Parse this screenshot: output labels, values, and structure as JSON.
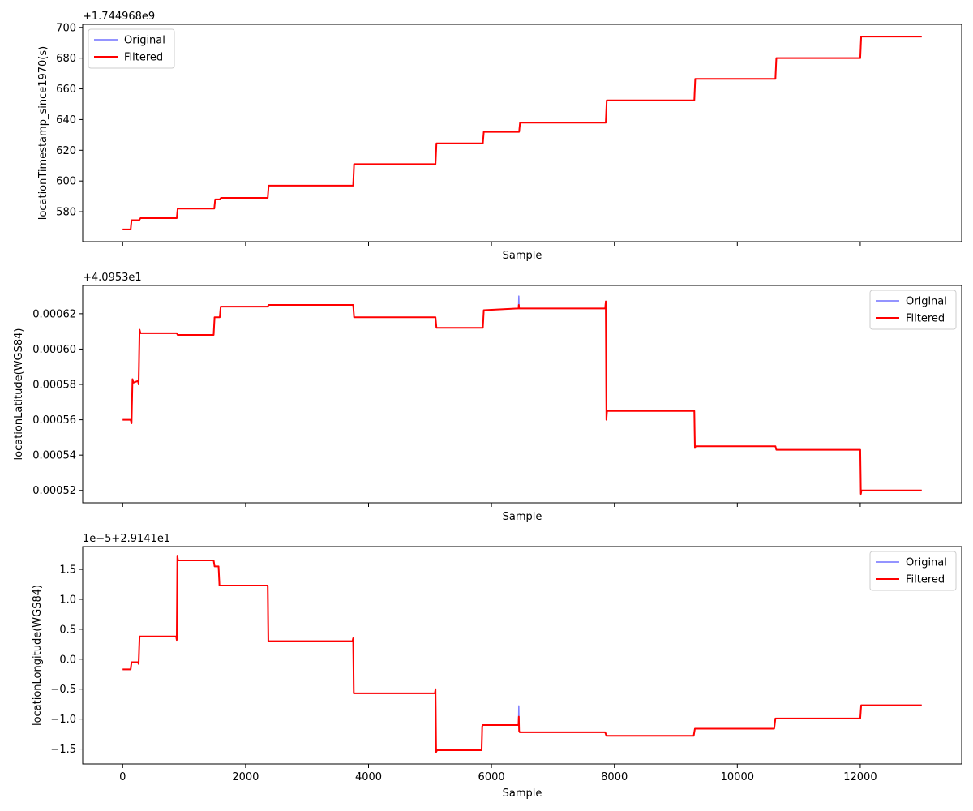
{
  "chart_data": [
    {
      "type": "line",
      "xlabel": "Sample",
      "ylabel": "locationTimestamp_since1970(s)",
      "offset_text": "+1.744968e9",
      "xlim": [
        -650,
        13650
      ],
      "ylim": [
        560.5,
        702.0
      ],
      "x_ticks": [
        0,
        2000,
        4000,
        6000,
        8000,
        10000,
        12000
      ],
      "x_tick_labels": [],
      "y_ticks": [
        580,
        600,
        620,
        640,
        660,
        680,
        700
      ],
      "y_tick_labels": [
        "580",
        "600",
        "620",
        "640",
        "660",
        "680",
        "700"
      ],
      "legend_position": "upper-left",
      "series": [
        {
          "name": "Original",
          "color": "#7070ff",
          "x": [
            0,
            130,
            145,
            270,
            290,
            880,
            895,
            1490,
            1505,
            1580,
            1600,
            2360,
            2375,
            3750,
            3765,
            5090,
            5105,
            5860,
            5875,
            6450,
            6465,
            7860,
            7875,
            9300,
            9315,
            10620,
            10635,
            12000,
            12015,
            13000
          ],
          "y": [
            568.5,
            568.5,
            574.5,
            574.5,
            575.8,
            575.8,
            582,
            582,
            588,
            588,
            589,
            589,
            597,
            597,
            611,
            611,
            624.5,
            624.5,
            632,
            632,
            638,
            638,
            652.5,
            652.5,
            666.5,
            666.5,
            680,
            680,
            694,
            694
          ]
        },
        {
          "name": "Filtered",
          "color": "#ff0000",
          "x": [
            0,
            130,
            145,
            270,
            290,
            880,
            895,
            1490,
            1505,
            1580,
            1600,
            2360,
            2375,
            3750,
            3765,
            5090,
            5105,
            5860,
            5875,
            6450,
            6465,
            7860,
            7875,
            9300,
            9315,
            10620,
            10635,
            12000,
            12015,
            13000
          ],
          "y": [
            568.5,
            568.5,
            574.5,
            574.5,
            575.8,
            575.8,
            582,
            582,
            588,
            588,
            589,
            589,
            597,
            597,
            611,
            611,
            624.5,
            624.5,
            632,
            632,
            638,
            638,
            652.5,
            652.5,
            666.5,
            666.5,
            680,
            680,
            694,
            694
          ]
        }
      ]
    },
    {
      "type": "line",
      "xlabel": "Sample",
      "ylabel": "locationLatitude(WGS84)",
      "offset_text": "+4.0953e1",
      "xlim": [
        -650,
        13650
      ],
      "ylim": [
        0.000513,
        0.000636
      ],
      "x_ticks": [
        0,
        2000,
        4000,
        6000,
        8000,
        10000,
        12000
      ],
      "x_tick_labels": [],
      "y_ticks": [
        0.00052,
        0.00054,
        0.00056,
        0.00058,
        0.0006,
        0.00062
      ],
      "y_tick_labels": [
        "0.00052",
        "0.00054",
        "0.00056",
        "0.00058",
        "0.00060",
        "0.00062"
      ],
      "legend_position": "upper-right",
      "series": [
        {
          "name": "Original",
          "color": "#7070ff",
          "x": [
            0,
            130,
            145,
            160,
            175,
            250,
            260,
            275,
            290,
            880,
            895,
            1480,
            1495,
            1505,
            1580,
            1595,
            2360,
            2375,
            3750,
            3765,
            5090,
            5105,
            5860,
            5875,
            6440,
            6445,
            6450,
            6460,
            7850,
            7860,
            7870,
            7880,
            7895,
            9300,
            9310,
            9320,
            10620,
            10635,
            12000,
            12010,
            12020,
            13000
          ],
          "y": [
            0.00056,
            0.00056,
            0.000558,
            0.000583,
            0.000581,
            0.000582,
            0.00058,
            0.000611,
            0.000609,
            0.000609,
            0.000608,
            0.000608,
            0.000618,
            0.000618,
            0.000618,
            0.000624,
            0.000624,
            0.000625,
            0.000625,
            0.000618,
            0.000618,
            0.000612,
            0.000612,
            0.000622,
            0.000623,
            0.00063,
            0.000623,
            0.000623,
            0.000623,
            0.000627,
            0.00056,
            0.000565,
            0.000565,
            0.000565,
            0.000544,
            0.000545,
            0.000545,
            0.000543,
            0.000543,
            0.000518,
            0.00052,
            0.00052
          ]
        },
        {
          "name": "Filtered",
          "color": "#ff0000",
          "x": [
            0,
            130,
            145,
            160,
            175,
            250,
            260,
            275,
            290,
            880,
            895,
            1480,
            1495,
            1505,
            1580,
            1595,
            2360,
            2375,
            3750,
            3765,
            5090,
            5105,
            5860,
            5875,
            6440,
            6445,
            6450,
            6460,
            7850,
            7860,
            7870,
            7880,
            7895,
            9300,
            9310,
            9320,
            10620,
            10635,
            12000,
            12010,
            12020,
            13000
          ],
          "y": [
            0.00056,
            0.00056,
            0.000558,
            0.000583,
            0.000581,
            0.000582,
            0.00058,
            0.000611,
            0.000609,
            0.000609,
            0.000608,
            0.000608,
            0.000618,
            0.000618,
            0.000618,
            0.000624,
            0.000624,
            0.000625,
            0.000625,
            0.000618,
            0.000618,
            0.000612,
            0.000612,
            0.000622,
            0.000623,
            0.000625,
            0.000623,
            0.000623,
            0.000623,
            0.000627,
            0.00056,
            0.000565,
            0.000565,
            0.000565,
            0.000544,
            0.000545,
            0.000545,
            0.000543,
            0.000543,
            0.000518,
            0.00052,
            0.00052
          ]
        }
      ]
    },
    {
      "type": "line",
      "xlabel": "Sample",
      "ylabel": "locationLongitude(WGS84)",
      "offset_text": "1e−5+2.9141e1",
      "xlim": [
        -650,
        13650
      ],
      "ylim": [
        -1.75,
        1.88
      ],
      "x_ticks": [
        0,
        2000,
        4000,
        6000,
        8000,
        10000,
        12000
      ],
      "x_tick_labels": [
        "0",
        "2000",
        "4000",
        "6000",
        "8000",
        "10000",
        "12000"
      ],
      "y_ticks": [
        -1.5,
        -1.0,
        -0.5,
        0.0,
        0.5,
        1.0,
        1.5
      ],
      "y_tick_labels": [
        "−1.5",
        "−1.0",
        "−0.5",
        "0.0",
        "0.5",
        "1.0",
        "1.5"
      ],
      "legend_position": "upper-right",
      "series": [
        {
          "name": "Original",
          "color": "#7070ff",
          "x": [
            0,
            130,
            145,
            250,
            260,
            275,
            290,
            870,
            880,
            890,
            900,
            910,
            1480,
            1495,
            1560,
            1575,
            1590,
            2360,
            2370,
            2385,
            3740,
            3750,
            3760,
            5080,
            5090,
            5100,
            5115,
            5840,
            5850,
            5860,
            6440,
            6445,
            6450,
            6460,
            7850,
            7870,
            9290,
            9310,
            10600,
            10620,
            12000,
            12015,
            13000
          ],
          "y": [
            -0.17,
            -0.17,
            -0.05,
            -0.05,
            -0.08,
            0.38,
            0.38,
            0.38,
            0.32,
            1.73,
            1.65,
            1.65,
            1.65,
            1.55,
            1.55,
            1.23,
            1.23,
            1.23,
            0.3,
            0.3,
            0.3,
            0.35,
            -0.57,
            -0.57,
            -0.5,
            -1.55,
            -1.52,
            -1.52,
            -1.12,
            -1.1,
            -1.1,
            -0.78,
            -1.2,
            -1.22,
            -1.22,
            -1.28,
            -1.28,
            -1.16,
            -1.16,
            -0.99,
            -0.99,
            -0.77,
            -0.77
          ]
        },
        {
          "name": "Filtered",
          "color": "#ff0000",
          "x": [
            0,
            130,
            145,
            250,
            260,
            275,
            290,
            870,
            880,
            890,
            900,
            910,
            1480,
            1495,
            1560,
            1575,
            1590,
            2360,
            2370,
            2385,
            3740,
            3750,
            3760,
            5080,
            5090,
            5100,
            5115,
            5840,
            5850,
            5860,
            6440,
            6445,
            6450,
            6460,
            7850,
            7870,
            9290,
            9310,
            10600,
            10620,
            12000,
            12015,
            13000
          ],
          "y": [
            -0.17,
            -0.17,
            -0.05,
            -0.05,
            -0.08,
            0.38,
            0.38,
            0.38,
            0.32,
            1.73,
            1.65,
            1.65,
            1.65,
            1.55,
            1.55,
            1.23,
            1.23,
            1.23,
            0.3,
            0.3,
            0.3,
            0.35,
            -0.57,
            -0.57,
            -0.5,
            -1.55,
            -1.52,
            -1.52,
            -1.12,
            -1.1,
            -1.1,
            -0.96,
            -1.2,
            -1.22,
            -1.22,
            -1.28,
            -1.28,
            -1.16,
            -1.16,
            -0.99,
            -0.99,
            -0.77,
            -0.77
          ]
        }
      ]
    }
  ]
}
